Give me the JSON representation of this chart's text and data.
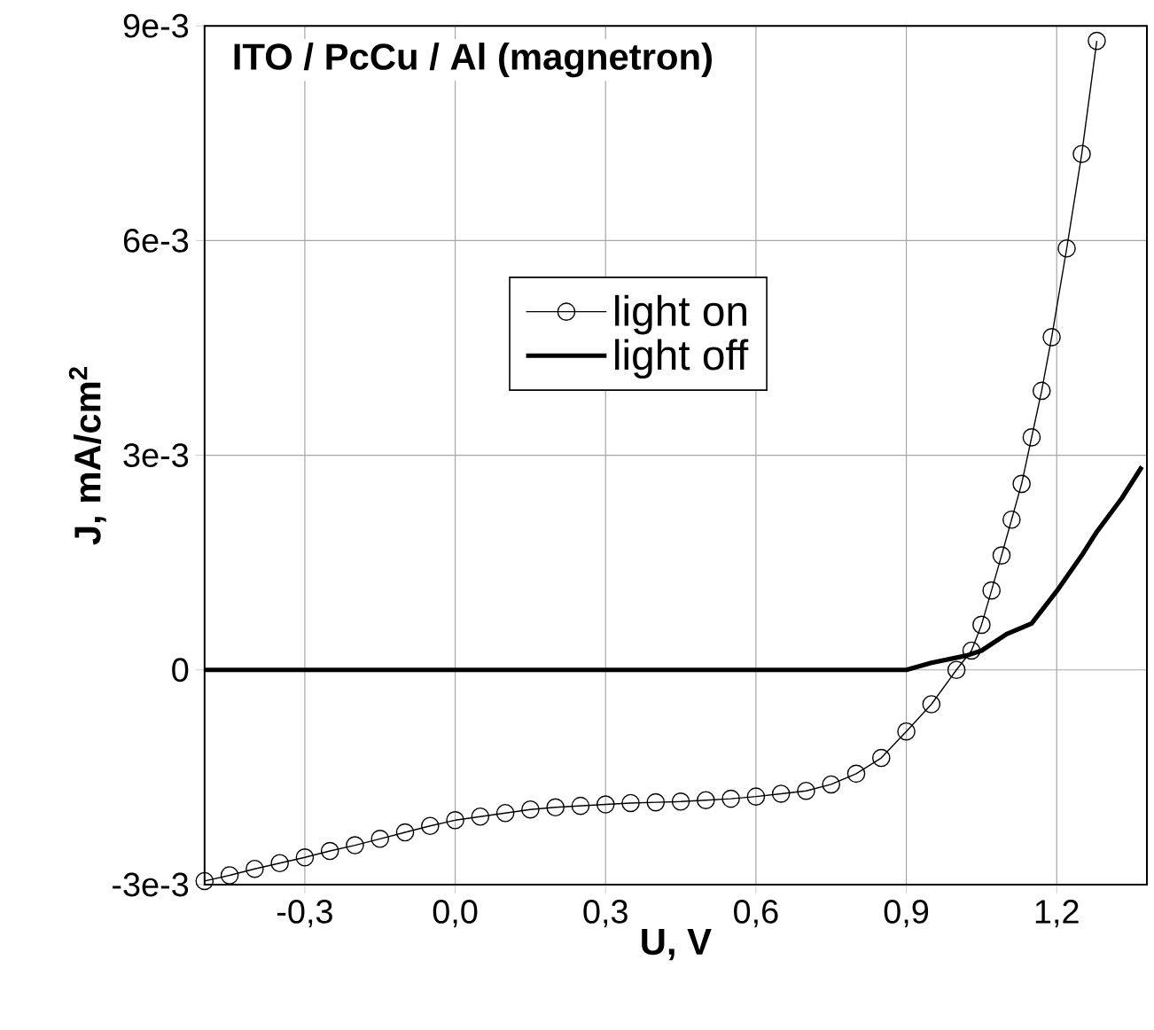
{
  "chart_data": {
    "type": "line",
    "title": "ITO / PcCu / Al (magnetron)",
    "xlabel": "U, V",
    "ylabel": "J, mA/cm$^{2}$",
    "xlim": [
      -0.5,
      1.38
    ],
    "ylim": [
      -0.003,
      0.009
    ],
    "xticks": [
      {
        "value": -0.3,
        "label": "-0,3"
      },
      {
        "value": 0.0,
        "label": "0,0"
      },
      {
        "value": 0.3,
        "label": "0,3"
      },
      {
        "value": 0.6,
        "label": "0,6"
      },
      {
        "value": 0.9,
        "label": "0,9"
      },
      {
        "value": 1.2,
        "label": "1,2"
      }
    ],
    "yticks": [
      {
        "value": -0.003,
        "label": "-3e-3"
      },
      0,
      {
        "value": 0.003,
        "label": "3e-3"
      },
      {
        "value": 0.006,
        "label": "6e-3"
      },
      {
        "value": 0.009,
        "label": "9e-3"
      }
    ],
    "grid": true,
    "legend": "center",
    "series": [
      {
        "name": "light on",
        "color": "#000000",
        "marker": "circle",
        "x": [
          -0.5,
          -0.45,
          -0.4,
          -0.35,
          -0.3,
          -0.25,
          -0.2,
          -0.15,
          -0.1,
          -0.05,
          0.0,
          0.05,
          0.1,
          0.15,
          0.2,
          0.25,
          0.3,
          0.35,
          0.4,
          0.45,
          0.5,
          0.55,
          0.6,
          0.65,
          0.7,
          0.75,
          0.8,
          0.85,
          0.9,
          0.95,
          1.0,
          1.03,
          1.05,
          1.07,
          1.09,
          1.11,
          1.13,
          1.15,
          1.17,
          1.19,
          1.22,
          1.25,
          1.28
        ],
        "values": [
          -0.00295,
          -0.00287,
          -0.00278,
          -0.0027,
          -0.00262,
          -0.00253,
          -0.00245,
          -0.00236,
          -0.00227,
          -0.00218,
          -0.0021,
          -0.00205,
          -0.002,
          -0.00195,
          -0.00192,
          -0.0019,
          -0.00188,
          -0.00186,
          -0.00185,
          -0.00184,
          -0.00182,
          -0.0018,
          -0.00177,
          -0.00173,
          -0.00169,
          -0.0016,
          -0.00145,
          -0.00123,
          -0.00086,
          -0.00048,
          0.0,
          0.00027,
          0.00063,
          0.00111,
          0.0016,
          0.0021,
          0.0026,
          0.00325,
          0.0039,
          0.00465,
          0.00589,
          0.00721,
          0.00879
        ]
      },
      {
        "name": "light off",
        "color": "#000000",
        "marker": "none",
        "x": [
          -0.5,
          -0.2,
          0.0,
          0.3,
          0.6,
          0.8,
          0.9,
          0.95,
          1.02,
          1.05,
          1.1,
          1.15,
          1.2,
          1.25,
          1.28,
          1.33,
          1.37
        ],
        "values": [
          0.0,
          0.0,
          0.0,
          0.0,
          0.0,
          0.0,
          0.0,
          0.0001,
          0.0002,
          0.00027,
          0.0005,
          0.00065,
          0.0011,
          0.0016,
          0.00193,
          0.0024,
          0.00284
        ]
      }
    ]
  }
}
